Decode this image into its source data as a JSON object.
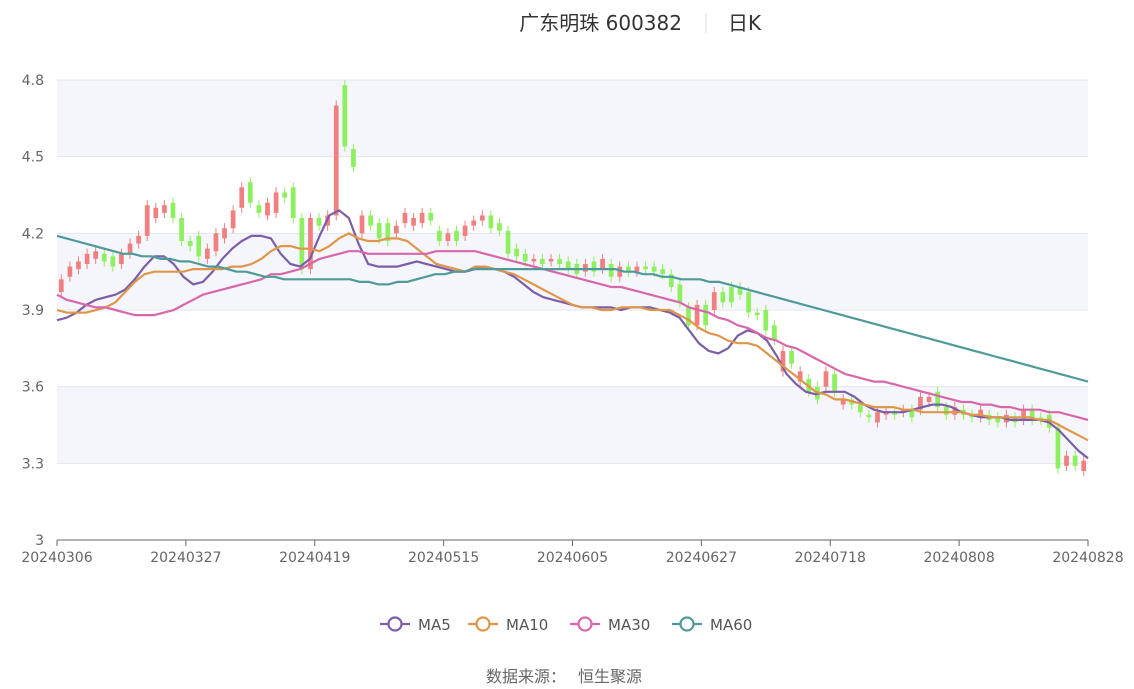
{
  "chart_data": {
    "type": "candlestick",
    "title": "广东明珠 600382",
    "subtitle": "日K",
    "source_label": "数据来源：",
    "source_value": "恒生聚源",
    "ylim": [
      3,
      4.8
    ],
    "yticks": [
      "3",
      "3.3",
      "3.6",
      "3.9",
      "4.2",
      "4.5",
      "4.8"
    ],
    "xticks": [
      "20240306",
      "20240327",
      "20240419",
      "20240515",
      "20240605",
      "20240627",
      "20240718",
      "20240808",
      "20240828"
    ],
    "colors": {
      "up": "#f08080",
      "down": "#8ef060",
      "MA5": "#7b5ea7",
      "MA10": "#e0964a",
      "MA30": "#d966aa",
      "MA60": "#4e9a9a"
    },
    "candles": [
      [
        3.97,
        4.02
      ],
      [
        4.03,
        4.07
      ],
      [
        4.06,
        4.09
      ],
      [
        4.08,
        4.12
      ],
      [
        4.1,
        4.13
      ],
      [
        4.12,
        4.09
      ],
      [
        4.11,
        4.07
      ],
      [
        4.08,
        4.12
      ],
      [
        4.12,
        4.16
      ],
      [
        4.16,
        4.19
      ],
      [
        4.19,
        4.31
      ],
      [
        4.26,
        4.3
      ],
      [
        4.28,
        4.31
      ],
      [
        4.32,
        4.26
      ],
      [
        4.26,
        4.17
      ],
      [
        4.17,
        4.15
      ],
      [
        4.19,
        4.11
      ],
      [
        4.1,
        4.14
      ],
      [
        4.13,
        4.2
      ],
      [
        4.18,
        4.22
      ],
      [
        4.22,
        4.29
      ],
      [
        4.3,
        4.38
      ],
      [
        4.4,
        4.32
      ],
      [
        4.31,
        4.28
      ],
      [
        4.27,
        4.32
      ],
      [
        4.28,
        4.36
      ],
      [
        4.36,
        4.34
      ],
      [
        4.38,
        4.26
      ],
      [
        4.26,
        4.06
      ],
      [
        4.06,
        4.26
      ],
      [
        4.26,
        4.23
      ],
      [
        4.23,
        4.27
      ],
      [
        4.27,
        4.7
      ],
      [
        4.78,
        4.54
      ],
      [
        4.53,
        4.46
      ],
      [
        4.2,
        4.27
      ],
      [
        4.27,
        4.23
      ],
      [
        4.24,
        4.18
      ],
      [
        4.24,
        4.17
      ],
      [
        4.2,
        4.23
      ],
      [
        4.24,
        4.28
      ],
      [
        4.23,
        4.26
      ],
      [
        4.24,
        4.28
      ],
      [
        4.28,
        4.25
      ],
      [
        4.21,
        4.17
      ],
      [
        4.17,
        4.2
      ],
      [
        4.21,
        4.17
      ],
      [
        4.19,
        4.23
      ],
      [
        4.23,
        4.25
      ],
      [
        4.25,
        4.27
      ],
      [
        4.27,
        4.22
      ],
      [
        4.24,
        4.21
      ],
      [
        4.21,
        4.12
      ],
      [
        4.14,
        4.11
      ],
      [
        4.12,
        4.09
      ],
      [
        4.09,
        4.1
      ],
      [
        4.1,
        4.08
      ],
      [
        4.09,
        4.1
      ],
      [
        4.1,
        4.08
      ],
      [
        4.09,
        4.06
      ],
      [
        4.08,
        4.04
      ],
      [
        4.05,
        4.08
      ],
      [
        4.09,
        4.05
      ],
      [
        4.06,
        4.1
      ],
      [
        4.08,
        4.03
      ],
      [
        4.03,
        4.07
      ],
      [
        4.07,
        4.05
      ],
      [
        4.05,
        4.07
      ],
      [
        4.07,
        4.06
      ],
      [
        4.07,
        4.05
      ],
      [
        4.06,
        4.04
      ],
      [
        4.04,
        3.99
      ],
      [
        4.0,
        3.93
      ],
      [
        3.91,
        3.84
      ],
      [
        3.84,
        3.92
      ],
      [
        3.92,
        3.84
      ],
      [
        3.9,
        3.97
      ],
      [
        3.97,
        3.93
      ],
      [
        3.99,
        3.93
      ],
      [
        3.99,
        3.96
      ],
      [
        3.97,
        3.89
      ],
      [
        3.89,
        3.88
      ],
      [
        3.9,
        3.82
      ],
      [
        3.84,
        3.78
      ],
      [
        3.66,
        3.74
      ],
      [
        3.74,
        3.69
      ],
      [
        3.62,
        3.66
      ],
      [
        3.63,
        3.58
      ],
      [
        3.6,
        3.55
      ],
      [
        3.6,
        3.66
      ],
      [
        3.65,
        3.58
      ],
      [
        3.53,
        3.55
      ],
      [
        3.55,
        3.53
      ],
      [
        3.53,
        3.5
      ],
      [
        3.49,
        3.48
      ],
      [
        3.46,
        3.5
      ],
      [
        3.49,
        3.5
      ],
      [
        3.5,
        3.49
      ],
      [
        3.5,
        3.51
      ],
      [
        3.51,
        3.48
      ],
      [
        3.51,
        3.56
      ],
      [
        3.54,
        3.56
      ],
      [
        3.58,
        3.52
      ],
      [
        3.52,
        3.49
      ],
      [
        3.49,
        3.52
      ],
      [
        3.51,
        3.49
      ],
      [
        3.49,
        3.48
      ],
      [
        3.48,
        3.51
      ],
      [
        3.49,
        3.47
      ],
      [
        3.48,
        3.46
      ],
      [
        3.46,
        3.49
      ],
      [
        3.48,
        3.46
      ],
      [
        3.47,
        3.51
      ],
      [
        3.51,
        3.47
      ],
      [
        3.48,
        3.47
      ],
      [
        3.49,
        3.44
      ],
      [
        3.44,
        3.28
      ],
      [
        3.29,
        3.33
      ],
      [
        3.33,
        3.29
      ],
      [
        3.27,
        3.31
      ]
    ],
    "series": [
      {
        "name": "MA5",
        "values": [
          3.86,
          3.87,
          3.89,
          3.92,
          3.94,
          3.95,
          3.96,
          3.98,
          4.02,
          4.07,
          4.11,
          4.11,
          4.08,
          4.03,
          4.0,
          4.01,
          4.05,
          4.1,
          4.14,
          4.17,
          4.19,
          4.19,
          4.18,
          4.12,
          4.08,
          4.07,
          4.1,
          4.19,
          4.27,
          4.29,
          4.26,
          4.16,
          4.08,
          4.07,
          4.07,
          4.07,
          4.08,
          4.09,
          4.08,
          4.07,
          4.06,
          4.05,
          4.05,
          4.06,
          4.07,
          4.06,
          4.05,
          4.03,
          4.0,
          3.97,
          3.95,
          3.94,
          3.93,
          3.92,
          3.91,
          3.91,
          3.91,
          3.91,
          3.9,
          3.91,
          3.91,
          3.91,
          3.9,
          3.89,
          3.87,
          3.82,
          3.77,
          3.74,
          3.73,
          3.75,
          3.8,
          3.82,
          3.81,
          3.78,
          3.72,
          3.65,
          3.61,
          3.58,
          3.57,
          3.58,
          3.58,
          3.58,
          3.56,
          3.53,
          3.51,
          3.5,
          3.5,
          3.5,
          3.51,
          3.52,
          3.53,
          3.53,
          3.52,
          3.5,
          3.49,
          3.48,
          3.48,
          3.48,
          3.47,
          3.47,
          3.47,
          3.47,
          3.46,
          3.43,
          3.39,
          3.35,
          3.32
        ]
      },
      {
        "name": "MA10",
        "values": [
          3.9,
          3.89,
          3.89,
          3.89,
          3.9,
          3.91,
          3.93,
          3.97,
          4.01,
          4.04,
          4.05,
          4.05,
          4.05,
          4.05,
          4.06,
          4.06,
          4.06,
          4.06,
          4.07,
          4.07,
          4.08,
          4.1,
          4.13,
          4.15,
          4.15,
          4.14,
          4.14,
          4.13,
          4.15,
          4.18,
          4.2,
          4.18,
          4.17,
          4.17,
          4.18,
          4.18,
          4.17,
          4.14,
          4.11,
          4.08,
          4.07,
          4.06,
          4.05,
          4.07,
          4.07,
          4.06,
          4.05,
          4.04,
          4.02,
          4.0,
          3.98,
          3.96,
          3.94,
          3.92,
          3.91,
          3.91,
          3.9,
          3.9,
          3.91,
          3.91,
          3.91,
          3.9,
          3.9,
          3.9,
          3.88,
          3.86,
          3.83,
          3.81,
          3.8,
          3.78,
          3.77,
          3.77,
          3.76,
          3.73,
          3.7,
          3.67,
          3.64,
          3.61,
          3.58,
          3.57,
          3.55,
          3.55,
          3.54,
          3.53,
          3.52,
          3.52,
          3.52,
          3.51,
          3.51,
          3.5,
          3.5,
          3.5,
          3.5,
          3.5,
          3.49,
          3.49,
          3.48,
          3.48,
          3.48,
          3.48,
          3.48,
          3.47,
          3.47,
          3.45,
          3.43,
          3.41,
          3.39
        ]
      },
      {
        "name": "MA30",
        "values": [
          3.96,
          3.94,
          3.93,
          3.92,
          3.91,
          3.91,
          3.9,
          3.89,
          3.88,
          3.88,
          3.88,
          3.89,
          3.9,
          3.92,
          3.94,
          3.96,
          3.97,
          3.98,
          3.99,
          4.0,
          4.01,
          4.02,
          4.04,
          4.04,
          4.05,
          4.06,
          4.08,
          4.1,
          4.11,
          4.12,
          4.13,
          4.13,
          4.12,
          4.12,
          4.12,
          4.12,
          4.12,
          4.12,
          4.12,
          4.13,
          4.13,
          4.13,
          4.13,
          4.13,
          4.12,
          4.11,
          4.1,
          4.09,
          4.08,
          4.07,
          4.06,
          4.05,
          4.04,
          4.03,
          4.02,
          4.01,
          4.0,
          3.99,
          3.99,
          3.98,
          3.97,
          3.96,
          3.95,
          3.94,
          3.93,
          3.91,
          3.9,
          3.89,
          3.87,
          3.86,
          3.84,
          3.83,
          3.81,
          3.79,
          3.78,
          3.76,
          3.75,
          3.73,
          3.71,
          3.69,
          3.67,
          3.65,
          3.64,
          3.63,
          3.62,
          3.62,
          3.61,
          3.6,
          3.59,
          3.58,
          3.57,
          3.56,
          3.55,
          3.54,
          3.54,
          3.53,
          3.53,
          3.52,
          3.52,
          3.51,
          3.51,
          3.51,
          3.5,
          3.5,
          3.49,
          3.48,
          3.47
        ]
      },
      {
        "name": "MA60",
        "values": [
          4.19,
          4.18,
          4.17,
          4.16,
          4.15,
          4.14,
          4.13,
          4.12,
          4.12,
          4.11,
          4.11,
          4.1,
          4.1,
          4.09,
          4.09,
          4.08,
          4.07,
          4.07,
          4.06,
          4.05,
          4.05,
          4.04,
          4.03,
          4.03,
          4.02,
          4.02,
          4.02,
          4.02,
          4.02,
          4.02,
          4.02,
          4.02,
          4.01,
          4.01,
          4.0,
          4.0,
          4.01,
          4.01,
          4.02,
          4.03,
          4.04,
          4.04,
          4.05,
          4.05,
          4.06,
          4.06,
          4.06,
          4.06,
          4.06,
          4.06,
          4.06,
          4.06,
          4.06,
          4.06,
          4.06,
          4.06,
          4.06,
          4.06,
          4.06,
          4.06,
          4.05,
          4.05,
          4.04,
          4.04,
          4.03,
          4.03,
          4.02,
          4.02,
          4.02,
          4.01,
          4.01,
          4.0,
          3.99,
          3.98,
          3.97,
          3.96,
          3.95,
          3.94,
          3.93,
          3.92,
          3.91,
          3.9,
          3.89,
          3.88,
          3.87,
          3.86,
          3.85,
          3.84,
          3.83,
          3.82,
          3.81,
          3.8,
          3.79,
          3.78,
          3.77,
          3.76,
          3.75,
          3.74,
          3.73,
          3.72,
          3.71,
          3.7,
          3.69,
          3.68,
          3.67,
          3.66,
          3.65,
          3.64,
          3.63,
          3.62
        ]
      }
    ]
  }
}
